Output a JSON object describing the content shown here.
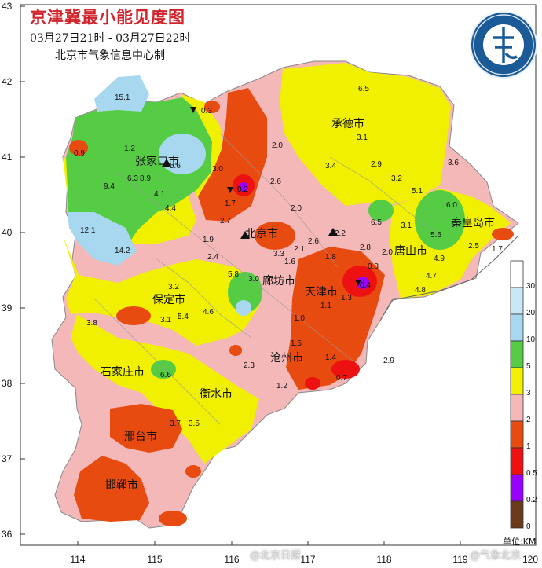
{
  "title": "京津冀最小能见度图",
  "time_range": "03月27日21时  - 03月27日22时",
  "maker": "北京市气象信息中心制",
  "logo_text": "METEOROLOGICAL SERVICE 北京市气象局",
  "axis": {
    "y_ticks": [
      "43",
      "42",
      "41",
      "40",
      "39",
      "38",
      "37",
      "36"
    ],
    "x_ticks": [
      "114",
      "115",
      "116",
      "117",
      "118",
      "119",
      "120"
    ]
  },
  "legend": {
    "unit_label": "单位:KM",
    "levels": [
      {
        "label": "30",
        "color": "#ffffff"
      },
      {
        "label": "20",
        "color": "#c8e8f8"
      },
      {
        "label": "10",
        "color": "#a8d8f0"
      },
      {
        "label": "5",
        "color": "#55cc44"
      },
      {
        "label": "3",
        "color": "#f0f000"
      },
      {
        "label": "2",
        "color": "#f4b8b8"
      },
      {
        "label": "1",
        "color": "#e84b10"
      },
      {
        "label": "0.5",
        "color": "#ee1111"
      },
      {
        "label": "0.2",
        "color": "#9900ff"
      },
      {
        "label": "0",
        "color": "#6b3a1a"
      }
    ]
  },
  "cities": [
    "承德市",
    "张家口市",
    "北京市",
    "秦皇岛市",
    "唐山市",
    "廊坊市",
    "天津市",
    "保定市",
    "沧州市",
    "石家庄市",
    "衡水市",
    "邢台市",
    "邯郸市"
  ],
  "stations": [
    "6.5",
    "15.1",
    "0.3",
    "2.0",
    "3.1",
    "1.2",
    "0.9",
    "5.6",
    "2.9",
    "3.6",
    "3.4",
    "3.0",
    "9.4",
    "6.3",
    "8.9",
    "2.6",
    "3.2",
    "5.1",
    "4.1",
    "1.7",
    "2.7",
    "2.0",
    "6.0",
    "0.2",
    "4.4",
    "2.2",
    "6.5",
    "3.1",
    "5.6",
    "12.1",
    "1.9",
    "2.1",
    "2.6",
    "1.8",
    "2.8",
    "2.0",
    "2.5",
    "14.2",
    "2.4",
    "3.3",
    "1.6",
    "0.8",
    "1.7",
    "4.9",
    "4.7",
    "3.2",
    "5.8",
    "3.0",
    "1.1",
    "1.0",
    "4.8",
    "3.8",
    "3.1",
    "5.4",
    "4.6",
    "1.5",
    "2.3",
    "1.4",
    "0.7",
    "1.2",
    "6.6",
    "3.5",
    "1.3",
    "2.9",
    "3.7",
    "0.4"
  ],
  "watermarks": [
    "@北京日报",
    "@气象北京"
  ]
}
